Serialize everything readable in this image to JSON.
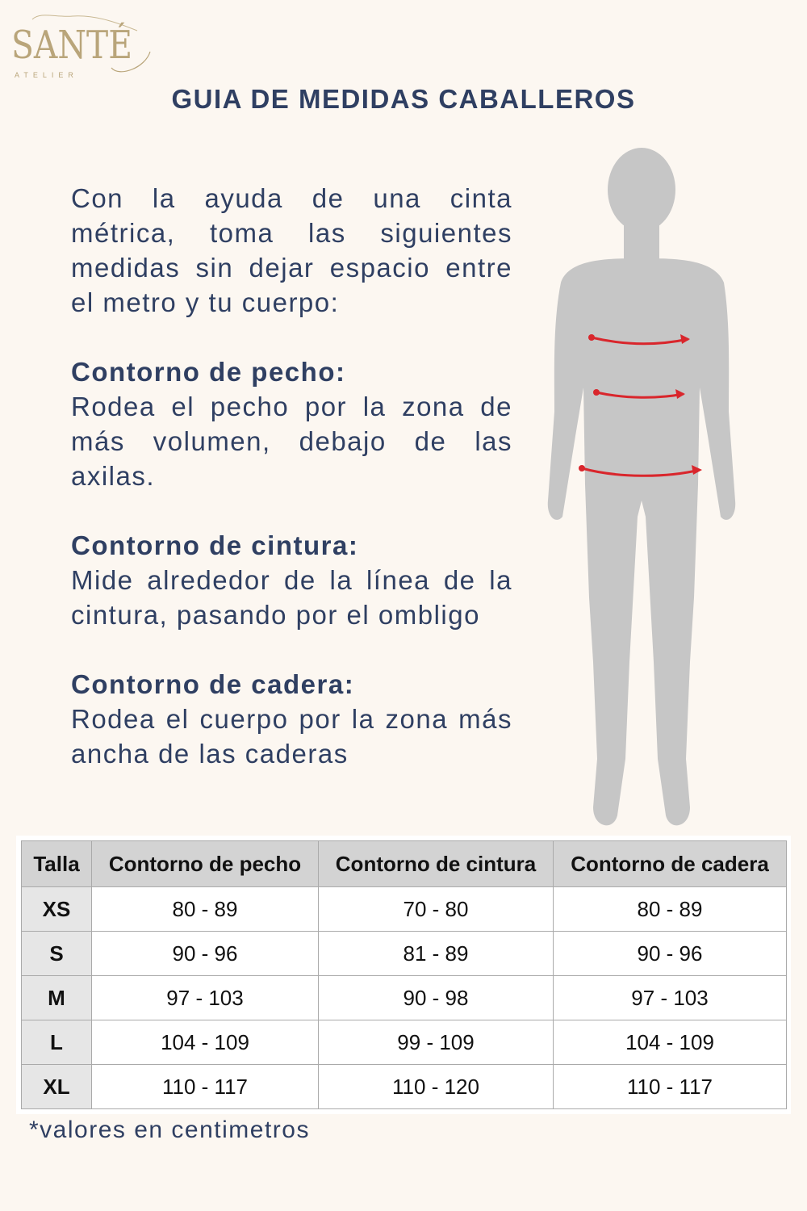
{
  "brand": {
    "name": "SANTÉ",
    "sub": "ATELIER",
    "color": "#b9a57a"
  },
  "title": "GUIA DE MEDIDAS CABALLEROS",
  "intro": "Con la ayuda de una cinta métrica, toma las siguientes medidas sin dejar espacio entre el metro y tu cuerpo:",
  "sections": [
    {
      "heading": "Contorno de pecho:",
      "text": "Rodea el pecho por la zona de más volumen, debajo de las axilas."
    },
    {
      "heading": "Contorno de cintura:",
      "text": "Mide alrededor de la línea de la cintura, pasando por el ombligo"
    },
    {
      "heading": "Contorno de cadera:",
      "text": "Rodea el cuerpo por la zona más ancha de las caderas"
    }
  ],
  "figure": {
    "icon": "male-body-silhouette-icon",
    "measure_color": "#d9262c"
  },
  "table": {
    "headers": [
      "Talla",
      "Contorno de pecho",
      "Contorno de cintura",
      "Contorno de cadera"
    ],
    "rows": [
      [
        "XS",
        "80 - 89",
        "70 - 80",
        "80 - 89"
      ],
      [
        "S",
        "90 - 96",
        "81 - 89",
        "90 - 96"
      ],
      [
        "M",
        "97 - 103",
        "90 - 98",
        "97 - 103"
      ],
      [
        "L",
        "104 - 109",
        "99 - 109",
        "104 - 109"
      ],
      [
        "XL",
        "110 - 117",
        "110 - 120",
        "110 - 117"
      ]
    ]
  },
  "note": "*valores en centimetros"
}
